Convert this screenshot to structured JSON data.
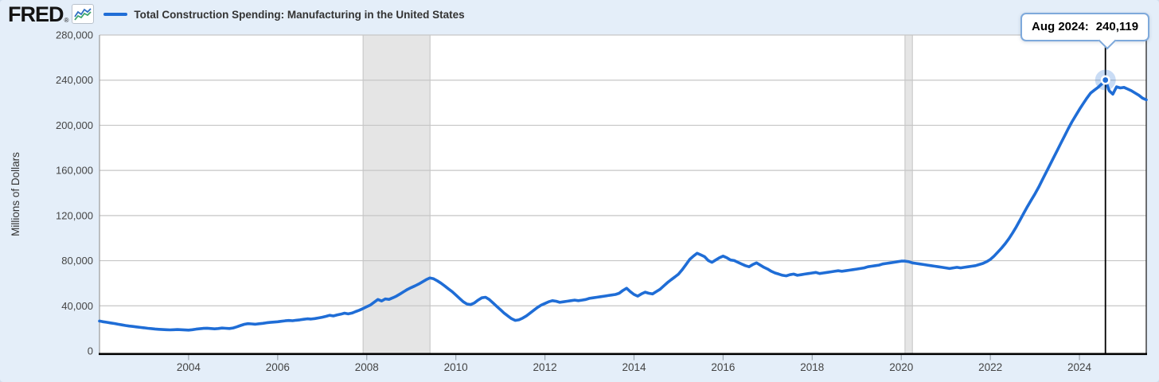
{
  "header": {
    "logo_text": "FRED",
    "logo_registered": "®",
    "series_title": "Total Construction Spending: Manufacturing in the United States"
  },
  "tooltip": {
    "label": "Aug 2024:",
    "value": "240,119"
  },
  "colors": {
    "line": "#1f6dd6",
    "page_bg": "#e4eef9",
    "plot_bg": "#ffffff",
    "grid": "#c6c6c6",
    "recession_fill": "#e5e5e5",
    "recession_edge": "#c3c3c3",
    "axis_text": "#444444",
    "axis_line": "#000000",
    "plot_border": "#9a9a9a",
    "cursor": "#000000",
    "tooltip_border": "#7ea9db",
    "logo_icon_blue": "#2d6fc2",
    "logo_icon_green": "#3da56c"
  },
  "chart_data": {
    "type": "line",
    "title": "Total Construction Spending: Manufacturing in the United States",
    "xlabel": "",
    "ylabel": "Millions of Dollars",
    "ylim": [
      0,
      280000
    ],
    "xlim": [
      2002.0,
      2025.5
    ],
    "y_ticks": [
      0,
      40000,
      80000,
      120000,
      160000,
      200000,
      240000,
      280000
    ],
    "x_ticks": [
      2004,
      2006,
      2008,
      2010,
      2012,
      2014,
      2016,
      2018,
      2020,
      2022,
      2024
    ],
    "grid": "horizontal",
    "legend_position": "top-left",
    "frequency": "monthly",
    "x_start": {
      "year": 2002,
      "month": 1
    },
    "recessions": [
      {
        "start": 2007.917,
        "end": 2009.42
      },
      {
        "start": 2020.083,
        "end": 2020.25
      }
    ],
    "cursor": {
      "t": 2024.5833,
      "label": "Aug 2024",
      "value": 240119
    },
    "series": [
      {
        "name": "Total Construction Spending: Manufacturing in the United States",
        "values": [
          26500,
          25900,
          25400,
          24800,
          24300,
          23700,
          23100,
          22600,
          22100,
          21700,
          21300,
          20900,
          20500,
          20100,
          19800,
          19500,
          19200,
          19000,
          18800,
          18700,
          18800,
          19000,
          18800,
          18600,
          18500,
          18800,
          19300,
          19700,
          20000,
          20200,
          19900,
          19600,
          19900,
          20300,
          20100,
          19900,
          20400,
          21400,
          22600,
          23600,
          24200,
          24000,
          23700,
          24100,
          24500,
          25000,
          25300,
          25600,
          25900,
          26300,
          26700,
          27000,
          26800,
          27200,
          27600,
          28100,
          28500,
          28300,
          28700,
          29300,
          29900,
          30700,
          31600,
          31000,
          31900,
          32600,
          33500,
          32900,
          33600,
          34900,
          36100,
          37600,
          39200,
          40800,
          43200,
          45600,
          44300,
          46100,
          45700,
          47100,
          48600,
          50600,
          52600,
          54600,
          56200,
          57700,
          59300,
          61200,
          63200,
          64700,
          64000,
          62200,
          60100,
          57600,
          55100,
          52600,
          49600,
          46600,
          43600,
          41600,
          41100,
          42600,
          45100,
          47100,
          47600,
          45600,
          42600,
          39600,
          36600,
          33600,
          31100,
          28600,
          27100,
          27600,
          29100,
          31100,
          33600,
          36100,
          38600,
          40600,
          42100,
          43600,
          44600,
          44100,
          43100,
          43600,
          44100,
          44600,
          45100,
          44600,
          45100,
          45600,
          46600,
          47100,
          47600,
          48100,
          48600,
          49100,
          49600,
          50100,
          51100,
          53600,
          55600,
          52600,
          50100,
          48600,
          50600,
          52100,
          51100,
          50600,
          52600,
          54600,
          57600,
          60600,
          63100,
          65600,
          68100,
          72100,
          76600,
          81100,
          84100,
          86600,
          85100,
          83600,
          80100,
          78600,
          80600,
          82600,
          84100,
          82600,
          80600,
          80100,
          78600,
          77100,
          75600,
          74600,
          76600,
          78100,
          76100,
          74100,
          72600,
          70600,
          69100,
          68100,
          67100,
          66600,
          67600,
          68100,
          67100,
          67600,
          68100,
          68600,
          69100,
          69600,
          68600,
          69100,
          69600,
          70100,
          70600,
          71100,
          70600,
          71100,
          71600,
          72100,
          72600,
          73100,
          73600,
          74600,
          75100,
          75600,
          76100,
          77100,
          77600,
          78100,
          78600,
          79100,
          79600,
          79600,
          79100,
          78100,
          77600,
          77100,
          76600,
          76100,
          75600,
          75100,
          74600,
          74100,
          73600,
          73100,
          73600,
          74100,
          73600,
          74100,
          74600,
          75100,
          75600,
          76600,
          77600,
          79100,
          81100,
          84100,
          87600,
          91100,
          95100,
          99600,
          104600,
          110100,
          116100,
          122100,
          128100,
          133600,
          139100,
          145100,
          151600,
          158100,
          164600,
          171100,
          177600,
          184100,
          190600,
          197100,
          203100,
          208600,
          214100,
          219100,
          224100,
          228600,
          231100,
          233600,
          236600,
          240119,
          230600,
          227600,
          234100,
          233100,
          233600,
          232100,
          230600,
          228600,
          226600,
          224100,
          222600
        ]
      }
    ]
  }
}
